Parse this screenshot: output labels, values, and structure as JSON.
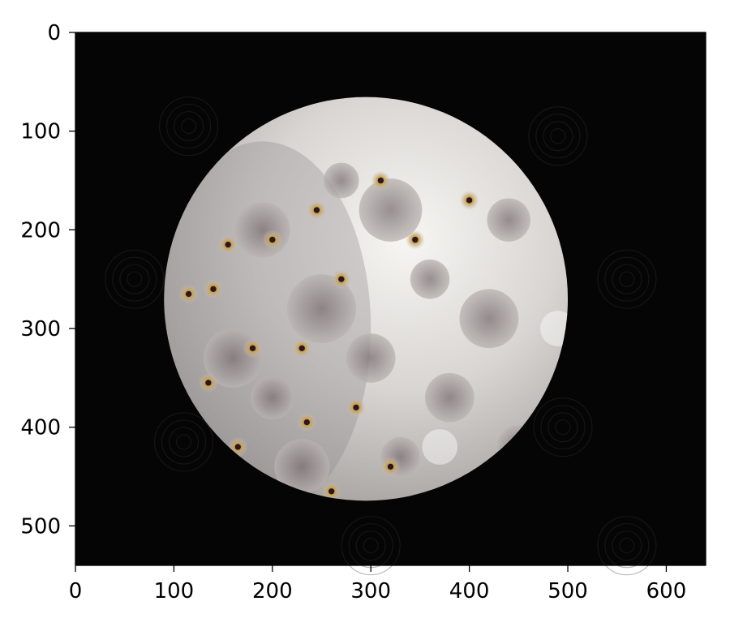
{
  "chart_data": {
    "type": "image",
    "title": "",
    "xlabel": "",
    "ylabel": "",
    "xlim": [
      0,
      640
    ],
    "ylim": [
      540,
      0
    ],
    "x_ticks": [
      0,
      100,
      200,
      300,
      400,
      500,
      600
    ],
    "y_ticks": [
      0,
      100,
      200,
      300,
      400,
      500
    ],
    "grid": false,
    "image": {
      "subject": "full moon with dream-like textures",
      "moon_center": [
        295,
        270
      ],
      "moon_radius": 205
    }
  },
  "colors": {
    "background": "#ffffff",
    "image_bg": "#050505",
    "moon_light": "#f2f1ee",
    "moon_mid": "#bdb8b4",
    "moon_dark": "#6f6a6a"
  }
}
